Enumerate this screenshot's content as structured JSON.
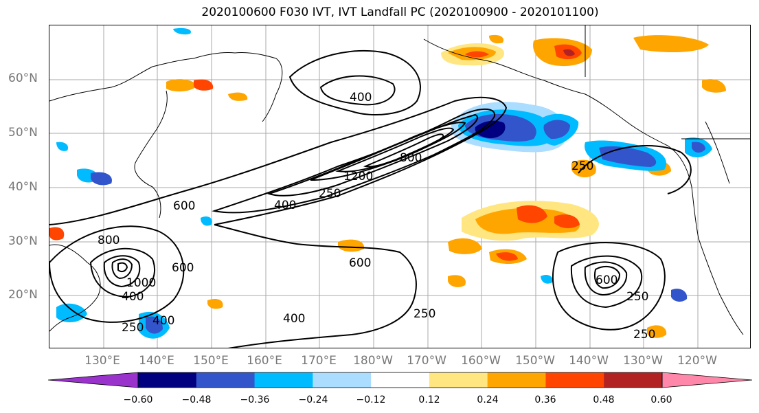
{
  "title": "2020100600 F030 IVT, IVT Landfall PC (2020100900 - 2020101100)",
  "lat_labels": [
    "60°N",
    "50°N",
    "40°N",
    "30°N",
    "20°N"
  ],
  "lon_labels": [
    "130°E",
    "140°E",
    "150°E",
    "160°E",
    "170°E",
    "180°W",
    "170°W",
    "160°W",
    "150°W",
    "140°W",
    "130°W",
    "120°W"
  ],
  "contour_labels": [
    "400",
    "250",
    "1200",
    "800",
    "400",
    "250",
    "600",
    "600",
    "800",
    "1000",
    "400",
    "600",
    "400",
    "250",
    "600",
    "400",
    "250",
    "250",
    "250"
  ],
  "colorbar": {
    "tick_labels": [
      "−0.60",
      "−0.48",
      "−0.36",
      "−0.24",
      "−0.12",
      "0.12",
      "0.24",
      "0.36",
      "0.48",
      "0.60"
    ],
    "colors": [
      "#9933cc",
      "#000080",
      "#3355cc",
      "#00bbff",
      "#aaddff",
      "#ffffff",
      "#ffe680",
      "#ffa500",
      "#ff4500",
      "#b22222",
      "#ff88aa"
    ]
  }
}
